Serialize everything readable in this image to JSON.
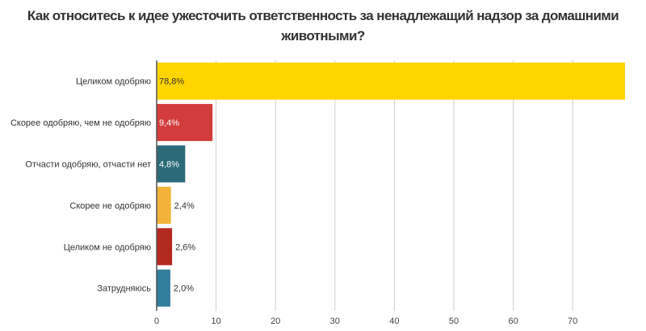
{
  "chart_data": {
    "type": "bar",
    "orientation": "horizontal",
    "title": "Как относитесь к идее ужесточить ответственность за ненадлежащий надзор за домашними животными?",
    "categories": [
      "Целиком одобряю",
      "Скорее одобряю, чем не одобряю",
      "Отчасти одобряю, отчасти нет",
      "Скорее не одобряю",
      "Целиком не одобряю",
      "Затрудняюсь"
    ],
    "values": [
      78.8,
      9.4,
      4.8,
      2.4,
      2.6,
      2.0
    ],
    "data_labels": [
      "78,8%",
      "9,4%",
      "4,8%",
      "2,4%",
      "2,6%",
      "2,0%"
    ],
    "colors": [
      "#FFD400",
      "#D23C3C",
      "#2B6A78",
      "#F2B338",
      "#B2291F",
      "#327E9C"
    ],
    "label_colors": [
      "#333333",
      "#ffffff",
      "#ffffff",
      "#333333",
      "#333333",
      "#333333"
    ],
    "xlim": [
      0,
      78.8
    ],
    "xticks": [
      0,
      10,
      20,
      30,
      40,
      50,
      60,
      70
    ],
    "xtick_labels": [
      "0",
      "10",
      "20",
      "30",
      "40",
      "50",
      "60",
      "70"
    ],
    "xlabel": "",
    "ylabel": "",
    "grid": true,
    "legend": "none"
  }
}
